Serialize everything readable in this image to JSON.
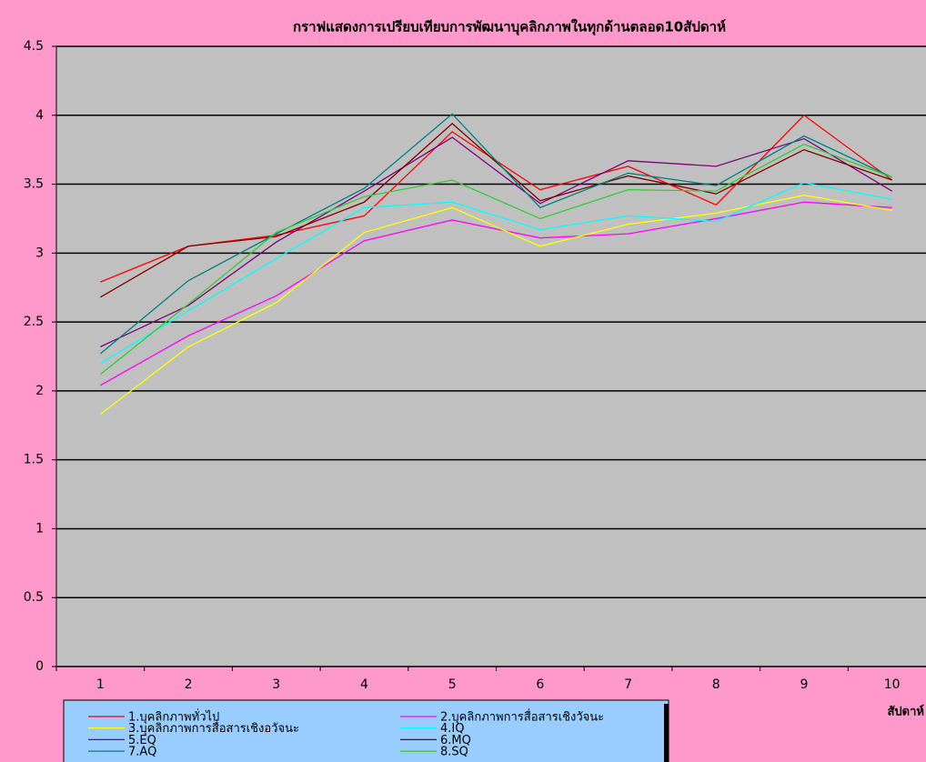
{
  "chart_data": {
    "type": "line",
    "title": "กราฟแสดงการเปรียบเทียบการพัฒนาบุคลิกภาพในทุกด้านตลอด10สัปดาห์",
    "x_label": "สัปดาห์",
    "categories": [
      "1",
      "2",
      "3",
      "4",
      "5",
      "6",
      "7",
      "8",
      "9",
      "10"
    ],
    "ylim": [
      0,
      4.5
    ],
    "yticks": [
      0,
      0.5,
      1,
      1.5,
      2,
      2.5,
      3,
      3.5,
      4,
      4.5
    ],
    "grid": true,
    "legend": "bottom",
    "series": [
      {
        "name": "1.บุคลิกภาพทั่วไป",
        "color": "#ff0000",
        "values": [
          2.79,
          3.05,
          3.13,
          3.27,
          3.88,
          3.46,
          3.63,
          3.35,
          4.0,
          3.53
        ]
      },
      {
        "name": "2.บุคลิกภาพการสื่อสารเชิงวัจนะ",
        "color": "#ff00ff",
        "values": [
          2.04,
          2.4,
          2.69,
          3.09,
          3.24,
          3.11,
          3.14,
          3.25,
          3.37,
          3.33
        ]
      },
      {
        "name": "3.บุคลิกภาพการสื่อสารเชิงอวัจนะ",
        "color": "#ffff00",
        "values": [
          1.83,
          2.32,
          2.64,
          3.15,
          3.33,
          3.05,
          3.21,
          3.29,
          3.42,
          3.31
        ]
      },
      {
        "name": "4.IQ",
        "color": "#00ffff",
        "values": [
          2.2,
          2.58,
          2.96,
          3.33,
          3.37,
          3.17,
          3.27,
          3.23,
          3.51,
          3.39
        ]
      },
      {
        "name": "5.EQ",
        "color": "#800080",
        "values": [
          2.32,
          2.62,
          3.08,
          3.45,
          3.84,
          3.36,
          3.67,
          3.63,
          3.83,
          3.45
        ]
      },
      {
        "name": "6.MQ",
        "color": "#800000",
        "values": [
          2.68,
          3.05,
          3.12,
          3.37,
          3.94,
          3.38,
          3.56,
          3.43,
          3.75,
          3.53
        ]
      },
      {
        "name": "7.AQ",
        "color": "#008080",
        "values": [
          2.27,
          2.8,
          3.14,
          3.47,
          4.01,
          3.33,
          3.58,
          3.49,
          3.85,
          3.55
        ]
      },
      {
        "name": "8.SQ",
        "color": "#33cc33",
        "values": [
          2.12,
          2.63,
          3.15,
          3.41,
          3.53,
          3.25,
          3.46,
          3.45,
          3.79,
          3.55
        ]
      }
    ]
  }
}
